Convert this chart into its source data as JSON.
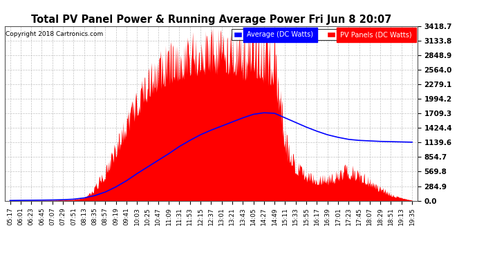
{
  "title": "Total PV Panel Power & Running Average Power Fri Jun 8 20:07",
  "copyright": "Copyright 2018 Cartronics.com",
  "legend_avg": "Average (DC Watts)",
  "legend_pv": "PV Panels (DC Watts)",
  "ymax": 3418.7,
  "ymin": 0.0,
  "yticks": [
    0.0,
    284.9,
    569.8,
    854.7,
    1139.6,
    1424.4,
    1709.3,
    1994.2,
    2279.1,
    2564.0,
    2848.9,
    3133.8,
    3418.7
  ],
  "background_color": "#ffffff",
  "pv_fill_color": "#ff0000",
  "avg_line_color": "#0000ff",
  "grid_color": "#bbbbbb",
  "legend_avg_color": "#0000ff",
  "legend_pv_color": "#ff0000",
  "x_labels": [
    "05:17",
    "06:01",
    "06:23",
    "06:45",
    "07:07",
    "07:29",
    "07:51",
    "08:13",
    "08:35",
    "08:57",
    "09:19",
    "09:41",
    "10:03",
    "10:25",
    "10:47",
    "11:09",
    "11:31",
    "11:53",
    "12:15",
    "12:37",
    "13:01",
    "13:21",
    "13:43",
    "14:05",
    "14:27",
    "14:49",
    "15:11",
    "15:33",
    "15:55",
    "16:17",
    "16:39",
    "17:01",
    "17:23",
    "17:45",
    "18:07",
    "18:29",
    "18:51",
    "19:13",
    "19:35"
  ],
  "avg_values": [
    5,
    8,
    10,
    12,
    15,
    20,
    30,
    55,
    100,
    170,
    270,
    390,
    530,
    660,
    790,
    920,
    1060,
    1180,
    1290,
    1380,
    1460,
    1540,
    1620,
    1690,
    1720,
    1710,
    1620,
    1530,
    1440,
    1360,
    1290,
    1240,
    1200,
    1180,
    1170,
    1160,
    1155,
    1150,
    1145
  ],
  "seed": 77
}
